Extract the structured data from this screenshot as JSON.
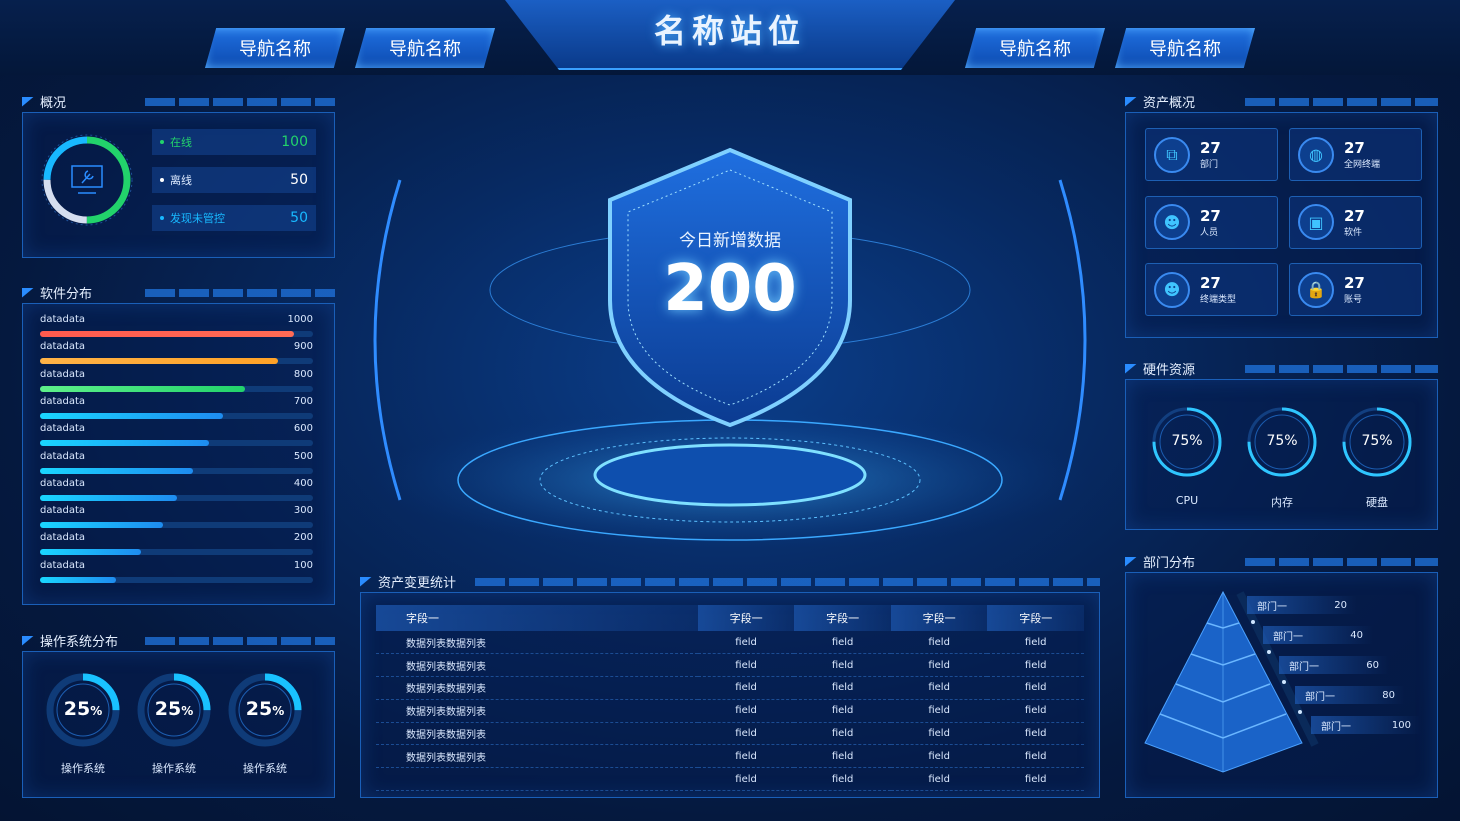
{
  "header": {
    "title": "名称站位",
    "nav": [
      "导航名称",
      "导航名称",
      "导航名称",
      "导航名称"
    ]
  },
  "overview": {
    "title": "概况",
    "ring_segments": [
      {
        "label": "在线",
        "fraction": 0.5,
        "color": "#22d36b"
      },
      {
        "label": "离线",
        "fraction": 0.25,
        "color": "#d5deef"
      },
      {
        "label": "发现未管控",
        "fraction": 0.25,
        "color": "#18b8ff"
      }
    ],
    "stats": [
      {
        "label": "在线",
        "value": "100",
        "color": "#22d36b"
      },
      {
        "label": "离线",
        "value": "50",
        "color": "#ffffff"
      },
      {
        "label": "发现未管控",
        "value": "50",
        "color": "#18b8ff"
      }
    ]
  },
  "software": {
    "title": "软件分布",
    "items": [
      {
        "label": "datadata",
        "value": "1000",
        "fill": 0.93,
        "color": [
          "#ff5a4e",
          "#ff6b55"
        ]
      },
      {
        "label": "datadata",
        "value": "900",
        "fill": 0.87,
        "color": [
          "#ffb347",
          "#ffa227"
        ]
      },
      {
        "label": "datadata",
        "value": "800",
        "fill": 0.75,
        "color": [
          "#5ef08a",
          "#22d36b"
        ]
      },
      {
        "label": "datadata",
        "value": "700",
        "fill": 0.67,
        "color": [
          "#1ad6ff",
          "#1e8cf0"
        ]
      },
      {
        "label": "datadata",
        "value": "600",
        "fill": 0.62,
        "color": [
          "#1ad6ff",
          "#1e8cf0"
        ]
      },
      {
        "label": "datadata",
        "value": "500",
        "fill": 0.56,
        "color": [
          "#1ad6ff",
          "#1e8cf0"
        ]
      },
      {
        "label": "datadata",
        "value": "400",
        "fill": 0.5,
        "color": [
          "#1ad6ff",
          "#1e8cf0"
        ]
      },
      {
        "label": "datadata",
        "value": "300",
        "fill": 0.45,
        "color": [
          "#1ad6ff",
          "#1e8cf0"
        ]
      },
      {
        "label": "datadata",
        "value": "200",
        "fill": 0.37,
        "color": [
          "#1ad6ff",
          "#1e8cf0"
        ]
      },
      {
        "label": "datadata",
        "value": "100",
        "fill": 0.28,
        "color": [
          "#1ad6ff",
          "#1e8cf0"
        ]
      }
    ]
  },
  "os": {
    "title": "操作系统分布",
    "items": [
      {
        "value": "25",
        "unit": "%",
        "label": "操作系统",
        "fraction": 0.25
      },
      {
        "value": "25",
        "unit": "%",
        "label": "操作系统",
        "fraction": 0.25
      },
      {
        "value": "25",
        "unit": "%",
        "label": "操作系统",
        "fraction": 0.25
      }
    ]
  },
  "center": {
    "label": "今日新增数据",
    "value": "200"
  },
  "changes": {
    "title": "资产变更统计",
    "columns": [
      "字段一",
      "字段一",
      "字段一",
      "字段一",
      "字段一"
    ],
    "rows": [
      [
        "数据列表数据列表",
        "field",
        "field",
        "field",
        "field"
      ],
      [
        "数据列表数据列表",
        "field",
        "field",
        "field",
        "field"
      ],
      [
        "数据列表数据列表",
        "field",
        "field",
        "field",
        "field"
      ],
      [
        "数据列表数据列表",
        "field",
        "field",
        "field",
        "field"
      ],
      [
        "数据列表数据列表",
        "field",
        "field",
        "field",
        "field"
      ],
      [
        "数据列表数据列表",
        "field",
        "field",
        "field",
        "field"
      ],
      [
        "",
        "field",
        "field",
        "field",
        "field"
      ]
    ]
  },
  "assets": {
    "title": "资产概况",
    "items": [
      {
        "value": "27",
        "label": "部门",
        "icon": "org-chart-icon"
      },
      {
        "value": "27",
        "label": "全网终端",
        "icon": "globe-icon"
      },
      {
        "value": "27",
        "label": "人员",
        "icon": "people-icon"
      },
      {
        "value": "27",
        "label": "软件",
        "icon": "monitor-code-icon"
      },
      {
        "value": "27",
        "label": "终端类型",
        "icon": "group-icon"
      },
      {
        "value": "27",
        "label": "账号",
        "icon": "lock-icon"
      }
    ]
  },
  "hardware": {
    "title": "硬件资源",
    "items": [
      {
        "value": "75%",
        "label": "CPU",
        "fraction": 0.75
      },
      {
        "value": "75%",
        "label": "内存",
        "fraction": 0.75
      },
      {
        "value": "75%",
        "label": "硬盘",
        "fraction": 0.75
      }
    ]
  },
  "departments": {
    "title": "部门分布",
    "items": [
      {
        "label": "部门一",
        "value": "20"
      },
      {
        "label": "部门一",
        "value": "40"
      },
      {
        "label": "部门一",
        "value": "60"
      },
      {
        "label": "部门一",
        "value": "80"
      },
      {
        "label": "部门一",
        "value": "100"
      }
    ]
  }
}
